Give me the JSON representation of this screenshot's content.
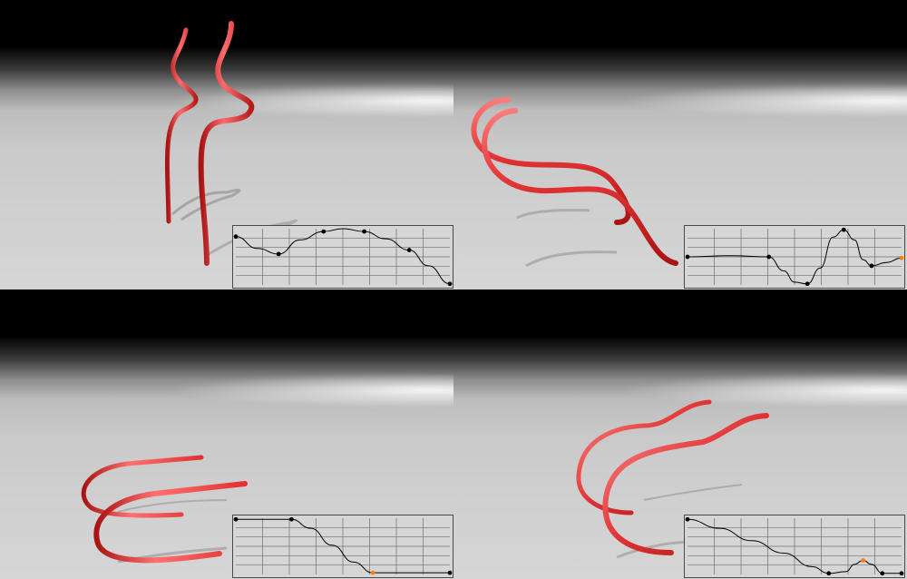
{
  "viewports": [
    {
      "id": "vp-1",
      "curve_points": [
        [
          0.0,
          0.14
        ],
        [
          0.2,
          0.45
        ],
        [
          0.41,
          0.05
        ],
        [
          0.6,
          0.05
        ],
        [
          0.81,
          0.38
        ],
        [
          1.0,
          0.98
        ]
      ],
      "curve_path": [
        [
          0,
          0.14
        ],
        [
          0.1,
          0.35
        ],
        [
          0.2,
          0.45
        ],
        [
          0.3,
          0.2
        ],
        [
          0.41,
          0.05
        ],
        [
          0.5,
          0.0
        ],
        [
          0.6,
          0.05
        ],
        [
          0.7,
          0.18
        ],
        [
          0.81,
          0.38
        ],
        [
          0.9,
          0.66
        ],
        [
          1.0,
          0.98
        ]
      ]
    },
    {
      "id": "vp-2",
      "curve_points": [
        [
          0.0,
          0.5
        ],
        [
          0.38,
          0.5
        ],
        [
          0.56,
          0.98
        ],
        [
          0.73,
          0.02
        ],
        [
          0.86,
          0.66
        ],
        [
          1.0,
          0.52
        ]
      ],
      "curve_path": [
        [
          0,
          0.5
        ],
        [
          0.2,
          0.48
        ],
        [
          0.38,
          0.5
        ],
        [
          0.45,
          0.75
        ],
        [
          0.5,
          0.95
        ],
        [
          0.56,
          0.98
        ],
        [
          0.62,
          0.7
        ],
        [
          0.68,
          0.15
        ],
        [
          0.73,
          0.02
        ],
        [
          0.78,
          0.2
        ],
        [
          0.82,
          0.55
        ],
        [
          0.86,
          0.66
        ],
        [
          0.93,
          0.6
        ],
        [
          1.0,
          0.52
        ]
      ]
    },
    {
      "id": "vp-3",
      "curve_points": [
        [
          0.0,
          0.02
        ],
        [
          0.26,
          0.02
        ],
        [
          0.64,
          0.97
        ],
        [
          1.0,
          0.97
        ]
      ],
      "curve_path": [
        [
          0,
          0.02
        ],
        [
          0.13,
          0.02
        ],
        [
          0.26,
          0.02
        ],
        [
          0.35,
          0.18
        ],
        [
          0.45,
          0.48
        ],
        [
          0.55,
          0.78
        ],
        [
          0.64,
          0.97
        ],
        [
          0.8,
          0.97
        ],
        [
          1.0,
          0.97
        ]
      ]
    },
    {
      "id": "vp-4",
      "curve_points": [
        [
          0.0,
          0.02
        ],
        [
          0.66,
          0.98
        ],
        [
          0.82,
          0.75
        ],
        [
          0.91,
          0.98
        ],
        [
          1.0,
          0.98
        ]
      ],
      "curve_path": [
        [
          0,
          0.02
        ],
        [
          0.15,
          0.18
        ],
        [
          0.3,
          0.4
        ],
        [
          0.45,
          0.62
        ],
        [
          0.58,
          0.86
        ],
        [
          0.66,
          0.98
        ],
        [
          0.74,
          0.95
        ],
        [
          0.78,
          0.82
        ],
        [
          0.82,
          0.75
        ],
        [
          0.86,
          0.82
        ],
        [
          0.91,
          0.98
        ],
        [
          1.0,
          0.98
        ]
      ]
    }
  ],
  "colors": {
    "tube": "#e03131",
    "tube_highlight": "#ff8a8a",
    "tube_shade": "#a81414",
    "shadow": "#8a8a8a",
    "grid_bg": "#d6d6d6",
    "grid_line": "#6f6f6f",
    "grid_border": "#4a4a4a",
    "curve": "#000000",
    "key_point": "#000000",
    "active_key": "#ff7f00"
  },
  "active_key_index": {
    "vp-2": 5,
    "vp-3": 2,
    "vp-4": 2
  }
}
